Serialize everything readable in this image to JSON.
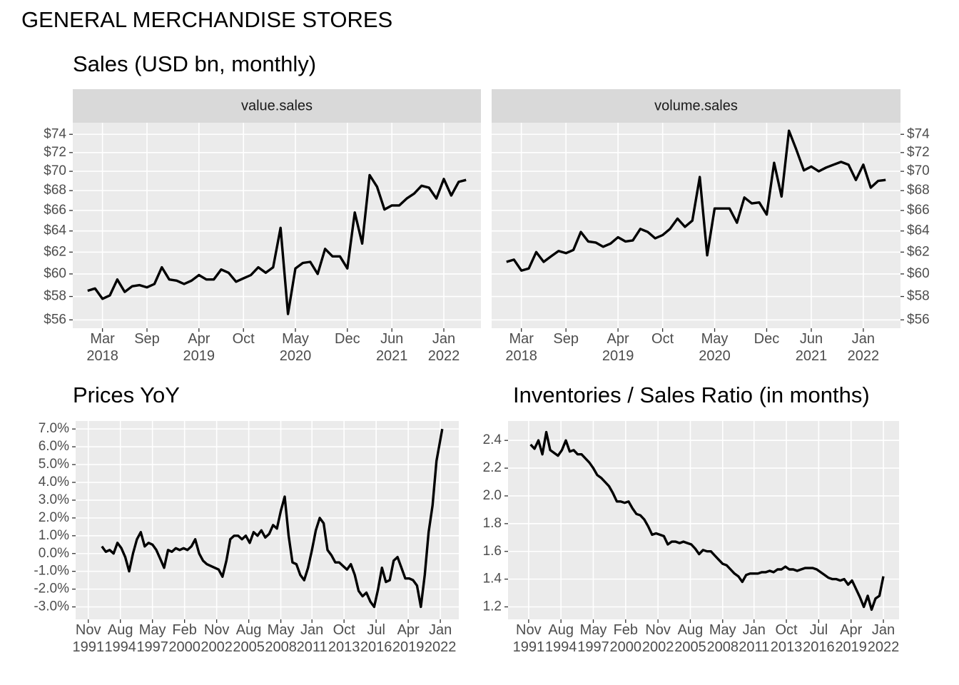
{
  "title": "GENERAL MERCHANDISE STORES",
  "chart_data": [
    {
      "type": "line",
      "title": "Sales (USD bn, monthly)",
      "facet": true,
      "ylog": true,
      "grid": true,
      "x": [
        "2018-01",
        "2018-02",
        "2018-03",
        "2018-04",
        "2018-05",
        "2018-06",
        "2018-07",
        "2018-08",
        "2018-09",
        "2018-10",
        "2018-11",
        "2018-12",
        "2019-01",
        "2019-02",
        "2019-03",
        "2019-04",
        "2019-05",
        "2019-06",
        "2019-07",
        "2019-08",
        "2019-09",
        "2019-10",
        "2019-11",
        "2019-12",
        "2020-01",
        "2020-02",
        "2020-03",
        "2020-04",
        "2020-05",
        "2020-06",
        "2020-07",
        "2020-08",
        "2020-09",
        "2020-10",
        "2020-11",
        "2020-12",
        "2021-01",
        "2021-02",
        "2021-03",
        "2021-04",
        "2021-05",
        "2021-06",
        "2021-07",
        "2021-08",
        "2021-09",
        "2021-10",
        "2021-11",
        "2021-12",
        "2022-01",
        "2022-02",
        "2022-03",
        "2022-04"
      ],
      "series": [
        {
          "name": "value.sales",
          "color": "#000000",
          "values": [
            58.5,
            58.7,
            57.8,
            58.1,
            59.5,
            58.4,
            58.9,
            59.0,
            58.8,
            59.1,
            60.6,
            59.5,
            59.4,
            59.1,
            59.4,
            59.9,
            59.5,
            59.5,
            60.4,
            60.1,
            59.3,
            59.6,
            59.9,
            60.6,
            60.1,
            60.6,
            64.3,
            56.5,
            60.5,
            61.0,
            61.1,
            60.0,
            62.3,
            61.6,
            61.6,
            60.5,
            65.8,
            62.8,
            69.6,
            68.4,
            66.1,
            66.5,
            66.5,
            67.2,
            67.7,
            68.5,
            68.3,
            67.2,
            69.2,
            67.5,
            68.9,
            69.1
          ]
        },
        {
          "name": "volume.sales",
          "color": "#000000",
          "values": [
            61.1,
            61.3,
            60.3,
            60.5,
            62.0,
            61.1,
            61.6,
            62.1,
            61.9,
            62.2,
            63.9,
            63.0,
            62.9,
            62.5,
            62.8,
            63.4,
            63.0,
            63.1,
            64.2,
            63.9,
            63.3,
            63.6,
            64.2,
            65.2,
            64.4,
            65.0,
            69.4,
            61.7,
            66.2,
            66.2,
            66.2,
            64.8,
            67.3,
            66.7,
            66.8,
            65.6,
            70.9,
            67.4,
            74.4,
            72.3,
            70.1,
            70.5,
            70.0,
            70.4,
            70.7,
            71.0,
            70.7,
            69.1,
            70.7,
            68.3,
            69.0,
            69.1
          ]
        }
      ],
      "ylim": [
        55.3,
        75.3
      ],
      "yticks": [
        {
          "value": 56,
          "label": "$56"
        },
        {
          "value": 58,
          "label": "$58"
        },
        {
          "value": 60,
          "label": "$60"
        },
        {
          "value": 62,
          "label": "$62"
        },
        {
          "value": 64,
          "label": "$64"
        },
        {
          "value": 66,
          "label": "$66"
        },
        {
          "value": 68,
          "label": "$68"
        },
        {
          "value": 70,
          "label": "$70"
        },
        {
          "value": 72,
          "label": "$72"
        },
        {
          "value": 74,
          "label": "$74"
        }
      ],
      "xlim": [
        "2017-11",
        "2022-06"
      ],
      "xticks": [
        {
          "value": "2018-03",
          "label": "Mar\n2018"
        },
        {
          "value": "2018-09",
          "label": "Sep"
        },
        {
          "value": "2019-04",
          "label": "Apr\n2019"
        },
        {
          "value": "2019-10",
          "label": "Oct"
        },
        {
          "value": "2020-05",
          "label": "May\n2020"
        },
        {
          "value": "2020-12",
          "label": "Dec"
        },
        {
          "value": "2021-06",
          "label": "Jun\n2021"
        },
        {
          "value": "2022-01",
          "label": "Jan\n2022"
        }
      ]
    },
    {
      "type": "line",
      "title": "Prices YoY",
      "color": "#000000",
      "grid": true,
      "x": [
        "1993-01",
        "1993-05",
        "1993-09",
        "1994-01",
        "1994-05",
        "1994-09",
        "1995-01",
        "1995-05",
        "1995-09",
        "1996-01",
        "1996-05",
        "1996-09",
        "1997-01",
        "1997-05",
        "1997-09",
        "1998-01",
        "1998-05",
        "1998-09",
        "1999-01",
        "1999-05",
        "1999-09",
        "2000-01",
        "2000-05",
        "2000-09",
        "2001-01",
        "2001-05",
        "2001-09",
        "2002-01",
        "2002-05",
        "2002-09",
        "2003-01",
        "2003-05",
        "2003-09",
        "2004-01",
        "2004-05",
        "2004-09",
        "2005-01",
        "2005-05",
        "2005-09",
        "2006-01",
        "2006-05",
        "2006-09",
        "2007-01",
        "2007-05",
        "2007-09",
        "2008-01",
        "2008-05",
        "2008-09",
        "2009-01",
        "2009-05",
        "2009-09",
        "2010-01",
        "2010-05",
        "2010-09",
        "2011-01",
        "2011-05",
        "2011-09",
        "2012-01",
        "2012-05",
        "2012-09",
        "2013-01",
        "2013-05",
        "2013-09",
        "2014-01",
        "2014-05",
        "2014-09",
        "2015-01",
        "2015-05",
        "2015-09",
        "2016-01",
        "2016-05",
        "2016-09",
        "2017-01",
        "2017-05",
        "2017-09",
        "2018-01",
        "2018-05",
        "2018-09",
        "2019-01",
        "2019-05",
        "2019-09",
        "2020-01",
        "2020-05",
        "2020-09",
        "2021-01",
        "2021-05",
        "2021-09",
        "2022-01",
        "2022-03"
      ],
      "values": [
        0.4,
        0.1,
        0.2,
        0.0,
        0.6,
        0.3,
        -0.2,
        -1.0,
        0.0,
        0.8,
        1.2,
        0.4,
        0.6,
        0.5,
        0.2,
        -0.3,
        -0.8,
        0.2,
        0.1,
        0.3,
        0.2,
        0.3,
        0.2,
        0.4,
        0.8,
        0.0,
        -0.4,
        -0.6,
        -0.7,
        -0.8,
        -0.9,
        -1.3,
        -0.4,
        0.8,
        1.0,
        1.0,
        0.8,
        1.0,
        0.6,
        1.2,
        1.0,
        1.3,
        0.9,
        1.1,
        1.6,
        1.4,
        2.4,
        3.2,
        1.0,
        -0.5,
        -0.6,
        -1.2,
        -1.5,
        -0.8,
        0.2,
        1.3,
        2.0,
        1.7,
        0.2,
        -0.1,
        -0.5,
        -0.5,
        -0.7,
        -0.9,
        -0.6,
        -1.2,
        -2.1,
        -2.4,
        -2.2,
        -2.7,
        -3.0,
        -2.0,
        -0.8,
        -1.6,
        -1.5,
        -0.4,
        -0.2,
        -0.8,
        -1.4,
        -1.4,
        -1.5,
        -1.8,
        -3.0,
        -1.2,
        1.2,
        2.7,
        5.2,
        6.4,
        7.0
      ],
      "ylim": [
        -3.7,
        7.45
      ],
      "yticks": [
        {
          "value": -3,
          "label": "-3.0%"
        },
        {
          "value": -2,
          "label": "-2.0%"
        },
        {
          "value": -1,
          "label": "-1.0%"
        },
        {
          "value": 0,
          "label": "0.0%"
        },
        {
          "value": 1,
          "label": "1.0%"
        },
        {
          "value": 2,
          "label": "2.0%"
        },
        {
          "value": 3,
          "label": "3.0%"
        },
        {
          "value": 4,
          "label": "4.0%"
        },
        {
          "value": 5,
          "label": "5.0%"
        },
        {
          "value": 6,
          "label": "6.0%"
        },
        {
          "value": 7,
          "label": "7.0%"
        }
      ],
      "xlim": [
        "1990-10",
        "2023-08"
      ],
      "xticks": [
        {
          "value": "1991-11",
          "label": "Nov\n1991"
        },
        {
          "value": "1994-08",
          "label": "Aug\n1994"
        },
        {
          "value": "1997-05",
          "label": "May\n1997"
        },
        {
          "value": "2000-02",
          "label": "Feb\n2000"
        },
        {
          "value": "2002-11",
          "label": "Nov\n2002"
        },
        {
          "value": "2005-08",
          "label": "Aug\n2005"
        },
        {
          "value": "2008-05",
          "label": "May\n2008"
        },
        {
          "value": "2011-01",
          "label": "Jan\n2011"
        },
        {
          "value": "2013-10",
          "label": "Oct\n2013"
        },
        {
          "value": "2016-07",
          "label": "Jul\n2016"
        },
        {
          "value": "2019-04",
          "label": "Apr\n2019"
        },
        {
          "value": "2022-01",
          "label": "Jan\n2022"
        }
      ]
    },
    {
      "type": "line",
      "title": "Inventories / Sales Ratio (in months)",
      "color": "#000000",
      "grid": true,
      "x": [
        "1992-01",
        "1992-05",
        "1992-09",
        "1993-01",
        "1993-05",
        "1993-09",
        "1994-01",
        "1994-05",
        "1994-09",
        "1995-01",
        "1995-05",
        "1995-09",
        "1996-01",
        "1996-05",
        "1996-09",
        "1997-01",
        "1997-05",
        "1997-09",
        "1998-01",
        "1998-05",
        "1998-09",
        "1999-01",
        "1999-05",
        "1999-09",
        "2000-01",
        "2000-05",
        "2000-09",
        "2001-01",
        "2001-05",
        "2001-09",
        "2002-01",
        "2002-05",
        "2002-09",
        "2003-01",
        "2003-05",
        "2003-09",
        "2004-01",
        "2004-05",
        "2004-09",
        "2005-01",
        "2005-05",
        "2005-09",
        "2006-01",
        "2006-05",
        "2006-09",
        "2007-01",
        "2007-05",
        "2007-09",
        "2008-01",
        "2008-05",
        "2008-09",
        "2009-01",
        "2009-05",
        "2009-09",
        "2010-01",
        "2010-05",
        "2010-09",
        "2011-01",
        "2011-05",
        "2011-09",
        "2012-01",
        "2012-05",
        "2012-09",
        "2013-01",
        "2013-05",
        "2013-09",
        "2014-01",
        "2014-05",
        "2014-09",
        "2015-01",
        "2015-05",
        "2015-09",
        "2016-01",
        "2016-05",
        "2016-09",
        "2017-01",
        "2017-05",
        "2017-09",
        "2018-01",
        "2018-05",
        "2018-09",
        "2019-01",
        "2019-05",
        "2019-09",
        "2020-01",
        "2020-05",
        "2020-09",
        "2021-01",
        "2021-05",
        "2021-09",
        "2022-01"
      ],
      "values": [
        2.37,
        2.34,
        2.4,
        2.3,
        2.46,
        2.33,
        2.31,
        2.29,
        2.33,
        2.4,
        2.32,
        2.33,
        2.3,
        2.3,
        2.27,
        2.24,
        2.2,
        2.15,
        2.13,
        2.1,
        2.07,
        2.02,
        1.96,
        1.96,
        1.95,
        1.96,
        1.91,
        1.87,
        1.86,
        1.83,
        1.78,
        1.72,
        1.73,
        1.72,
        1.71,
        1.65,
        1.67,
        1.67,
        1.66,
        1.67,
        1.66,
        1.65,
        1.62,
        1.58,
        1.61,
        1.6,
        1.6,
        1.57,
        1.54,
        1.51,
        1.5,
        1.47,
        1.44,
        1.42,
        1.38,
        1.43,
        1.44,
        1.44,
        1.44,
        1.45,
        1.45,
        1.46,
        1.45,
        1.47,
        1.47,
        1.49,
        1.47,
        1.47,
        1.46,
        1.47,
        1.48,
        1.48,
        1.48,
        1.47,
        1.45,
        1.43,
        1.41,
        1.4,
        1.4,
        1.39,
        1.4,
        1.36,
        1.39,
        1.33,
        1.27,
        1.2,
        1.28,
        1.18,
        1.26,
        1.28,
        1.42
      ],
      "ylim": [
        1.11,
        2.54
      ],
      "yticks": [
        1.2,
        1.4,
        1.6,
        1.8,
        {
          "value": 2,
          "label": "2.0"
        },
        2.2,
        2.4
      ],
      "xlim": [
        "1990-02",
        "2023-05"
      ],
      "xticks": [
        {
          "value": "1991-11",
          "label": "Nov\n1991"
        },
        {
          "value": "1994-08",
          "label": "Aug\n1994"
        },
        {
          "value": "1997-05",
          "label": "May\n1997"
        },
        {
          "value": "2000-02",
          "label": "Feb\n2000"
        },
        {
          "value": "2002-11",
          "label": "Nov\n2002"
        },
        {
          "value": "2005-08",
          "label": "Aug\n2005"
        },
        {
          "value": "2008-05",
          "label": "May\n2008"
        },
        {
          "value": "2011-01",
          "label": "Jan\n2011"
        },
        {
          "value": "2013-10",
          "label": "Oct\n2013"
        },
        {
          "value": "2016-07",
          "label": "Jul\n2016"
        },
        {
          "value": "2019-04",
          "label": "Apr\n2019"
        },
        {
          "value": "2022-01",
          "label": "Jan\n2022"
        }
      ]
    }
  ]
}
